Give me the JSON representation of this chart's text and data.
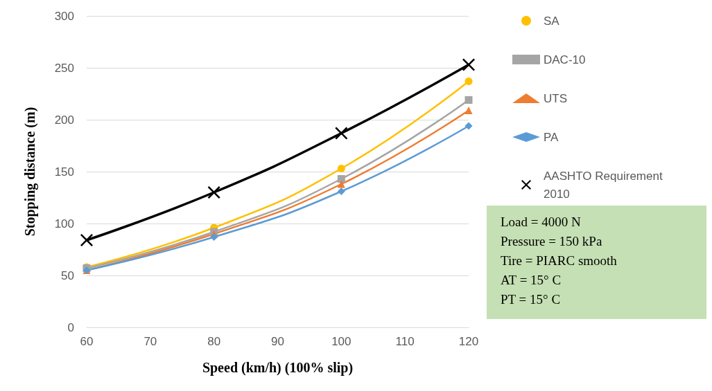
{
  "chart_data": {
    "type": "line",
    "xlabel": "Speed (km/h) (100% slip)",
    "ylabel": "Stopping distance (m)",
    "x": [
      60,
      80,
      100,
      120
    ],
    "xlim": [
      60,
      120
    ],
    "xticks": [
      60,
      70,
      80,
      90,
      100,
      110,
      120
    ],
    "ylim": [
      0,
      300
    ],
    "yticks": [
      0,
      50,
      100,
      150,
      200,
      250,
      300
    ],
    "grid": "y",
    "legend": "right",
    "line_style": "solid",
    "series": [
      {
        "name": "SA",
        "color": "#ffc000",
        "marker": "circle",
        "values": [
          58,
          96,
          153,
          237
        ]
      },
      {
        "name": "DAC-10",
        "color": "#a5a5a5",
        "marker": "square",
        "values": [
          57,
          92,
          143,
          219
        ]
      },
      {
        "name": "UTS",
        "color": "#ed7d31",
        "marker": "triangle",
        "values": [
          55,
          90,
          138,
          209
        ]
      },
      {
        "name": "PA",
        "color": "#5b9bd5",
        "marker": "diamond",
        "values": [
          55,
          87,
          131,
          194
        ]
      },
      {
        "name": "AASHTO Requirement 2010",
        "color": "#000000",
        "marker": "cross",
        "values": [
          84,
          130,
          187,
          253
        ]
      }
    ],
    "annotations": [
      "Load = 4000 N",
      "Pressure = 150 kPa",
      "Tire = PIARC smooth",
      "AT = 15° C",
      "PT = 15° C"
    ]
  }
}
